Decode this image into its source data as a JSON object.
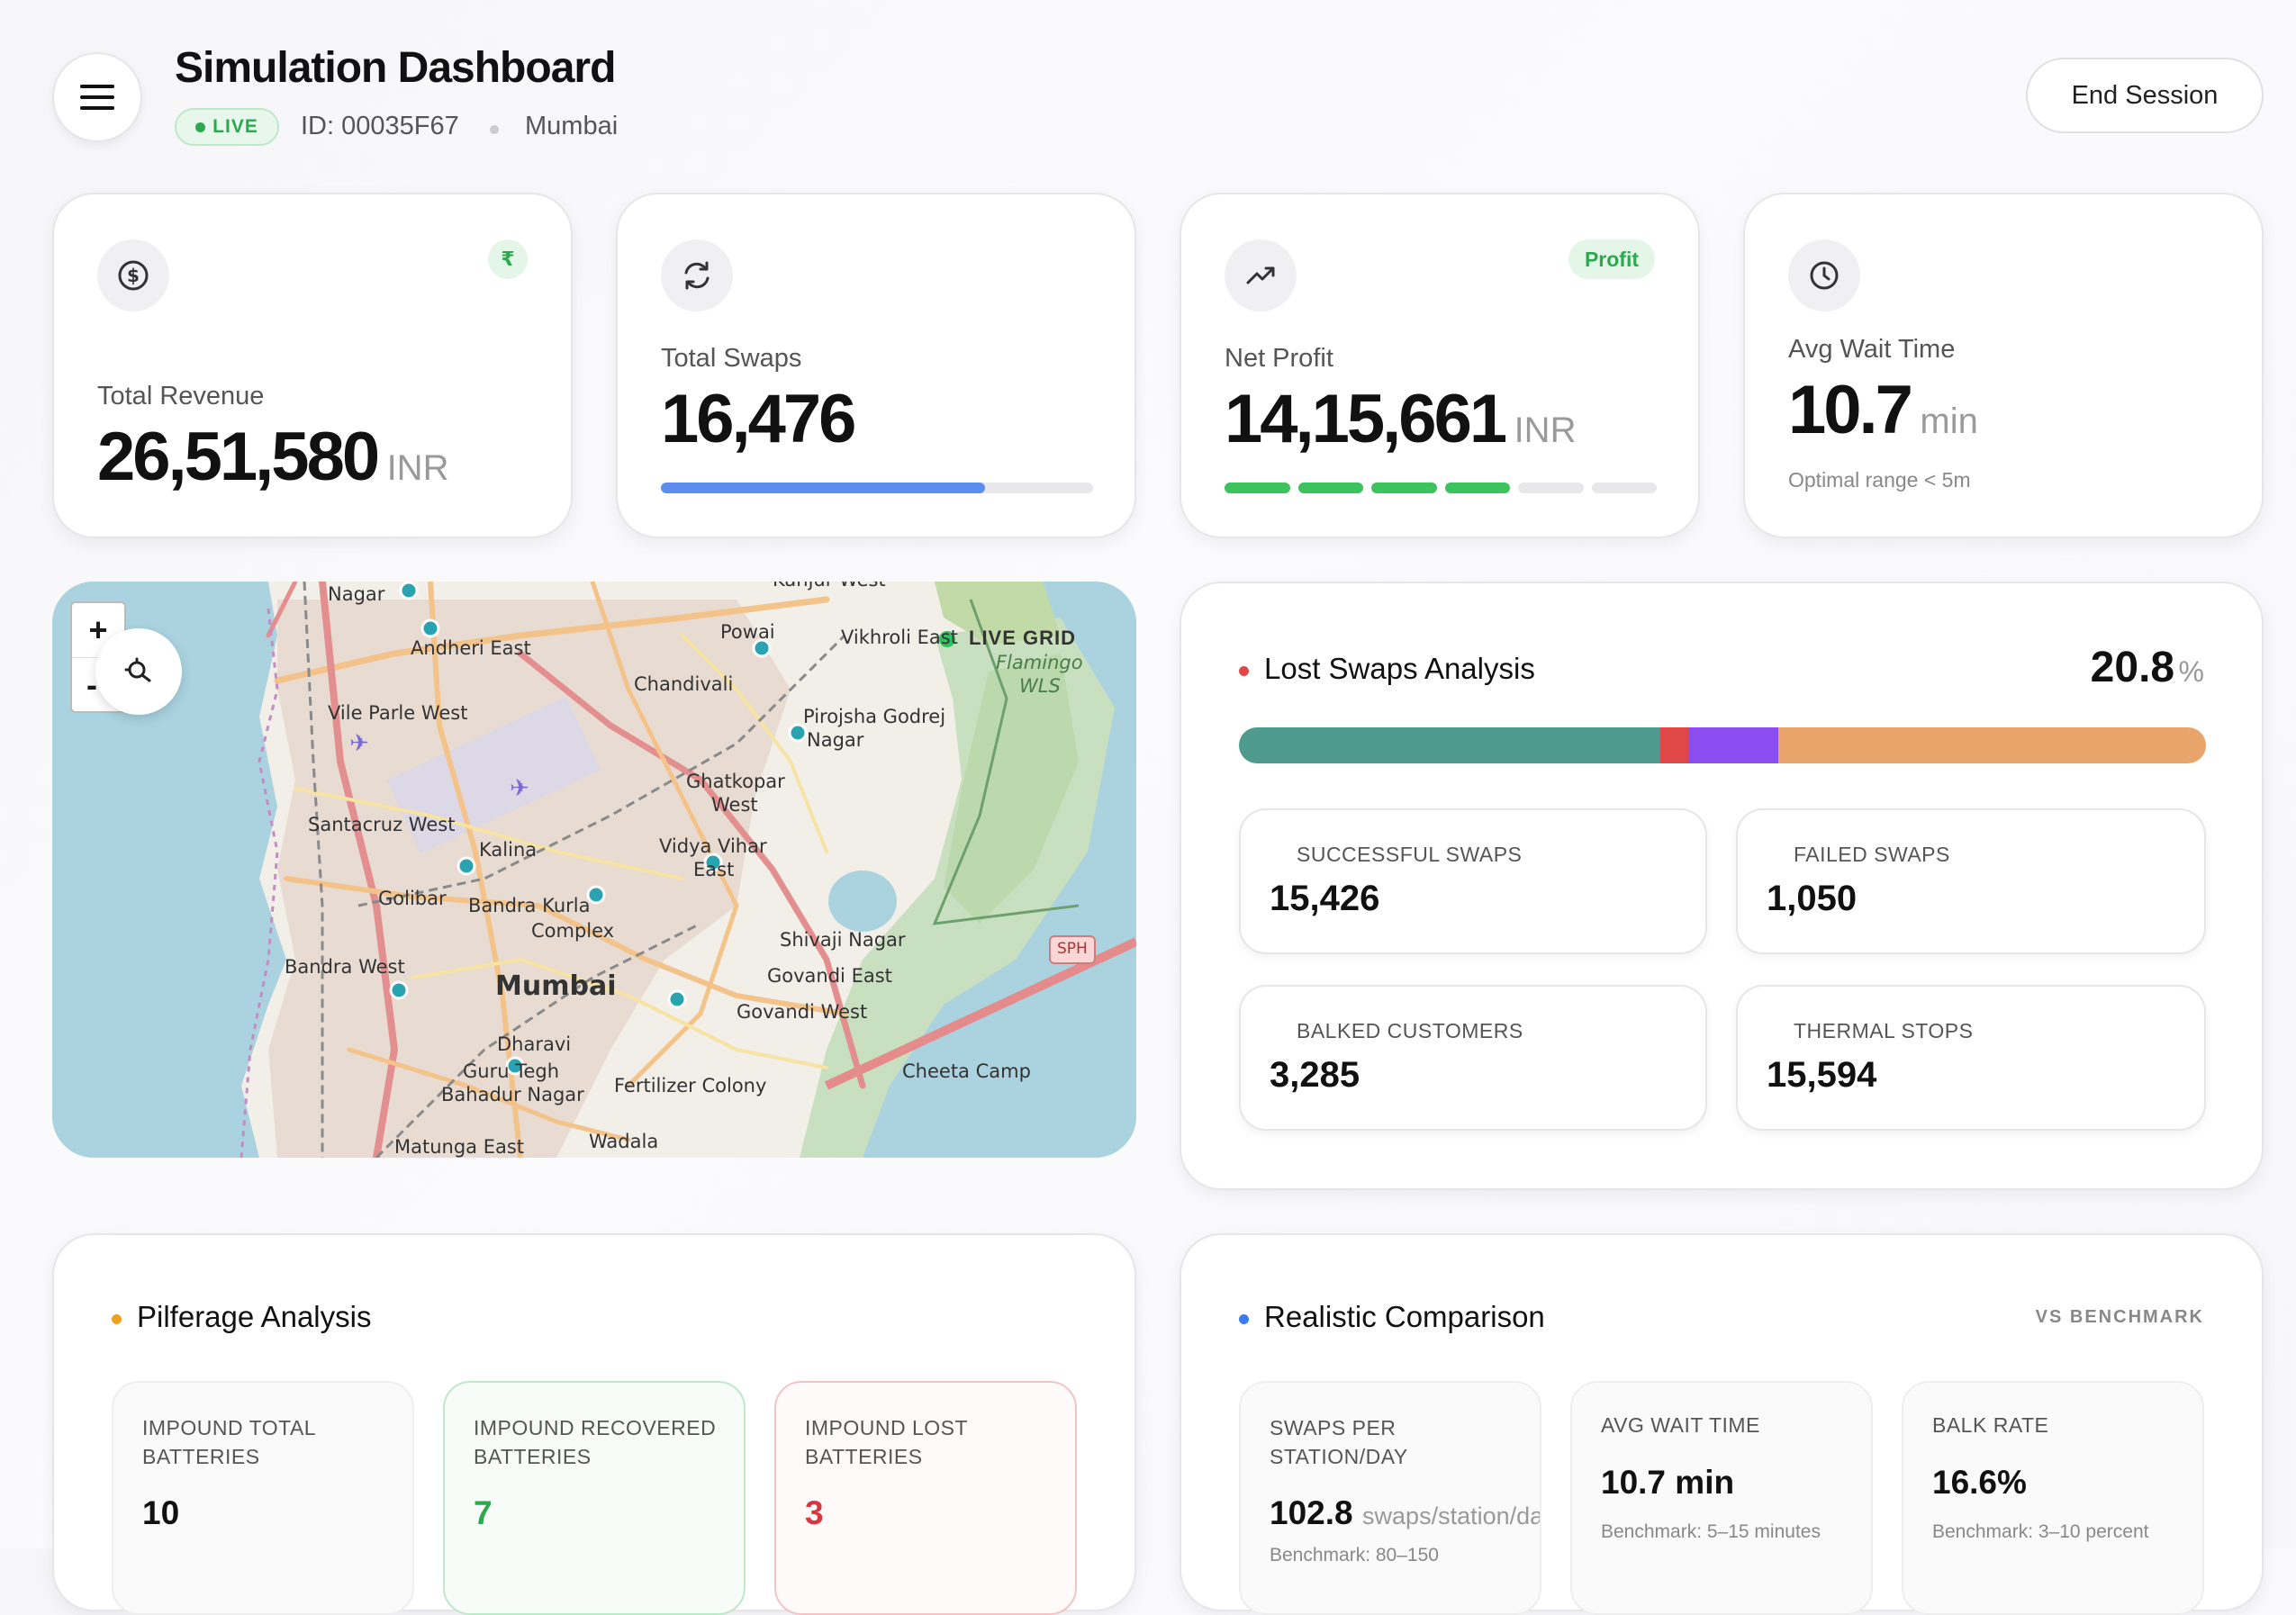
{
  "header": {
    "title": "Simulation Dashboard",
    "live_label": "LIVE",
    "session_id": "ID: 00035F67",
    "location": "Mumbai",
    "end_session_label": "End Session"
  },
  "kpis": {
    "revenue": {
      "label": "Total Revenue",
      "value": "26,51,580",
      "unit": "INR",
      "badge": "₹"
    },
    "swaps": {
      "label": "Total Swaps",
      "value": "16,476",
      "progress": 0.75
    },
    "profit": {
      "label": "Net Profit",
      "value": "14,15,661",
      "unit": "INR",
      "badge": "Profit",
      "segments_filled": 4,
      "segments_total": 6
    },
    "wait": {
      "label": "Avg Wait Time",
      "value": "10.7",
      "unit": "min",
      "note": "Optimal range < 5m"
    }
  },
  "map": {
    "zoom_in": "+",
    "zoom_out": "-",
    "live_grid_label": "LIVE GRID",
    "place_labels": [
      "Nagar",
      "Andheri East",
      "Powai",
      "Vikhroli East",
      "Flamingo",
      "WLS",
      "Chandivali",
      "Vile Parle West",
      "Pirojsha Godrej",
      "Nagar",
      "Ghatkopar",
      "West",
      "Santacruz West",
      "Kalina",
      "Vidya Vihar",
      "East",
      "Golibar",
      "Bandra Kurla",
      "Complex",
      "Shivaji Nagar",
      "Govandi East",
      "Bandra West",
      "Mumbai",
      "Govandi West",
      "Dharavi",
      "Guru Tegh",
      "Bahadur Nagar",
      "Fertilizer Colony",
      "Cheeta Camp",
      "Matunga East",
      "Wadala",
      "SPH",
      "Kanjur West"
    ]
  },
  "lost_swaps": {
    "title": "Lost Swaps Analysis",
    "percent": "20.8",
    "percent_unit": "%",
    "bar_segments": [
      {
        "name": "successful",
        "fraction": 0.436,
        "color": "#4e9a8c"
      },
      {
        "name": "failed",
        "fraction": 0.03,
        "color": "#e04848"
      },
      {
        "name": "balked",
        "fraction": 0.092,
        "color": "#8b4df0"
      },
      {
        "name": "thermal",
        "fraction": 0.442,
        "color": "#e8a46a"
      }
    ],
    "stats": [
      {
        "label": "SUCCESSFUL SWAPS",
        "value": "15,426"
      },
      {
        "label": "FAILED SWAPS",
        "value": "1,050"
      },
      {
        "label": "BALKED CUSTOMERS",
        "value": "3,285"
      },
      {
        "label": "THERMAL STOPS",
        "value": "15,594"
      }
    ]
  },
  "pilferage": {
    "title": "Pilferage Analysis",
    "stats": [
      {
        "label": "IMPOUND TOTAL BATTERIES",
        "value": "10"
      },
      {
        "label": "IMPOUND RECOVERED BATTERIES",
        "value": "7"
      },
      {
        "label": "IMPOUND LOST BATTERIES",
        "value": "3"
      }
    ]
  },
  "comparison": {
    "title": "Realistic Comparison",
    "tag": "VS BENCHMARK",
    "stats": [
      {
        "label": "SWAPS PER STATION/DAY",
        "value": "102.8",
        "unit": "swaps/station/day",
        "benchmark": "Benchmark: 80–150"
      },
      {
        "label": "AVG WAIT TIME",
        "value": "10.7 min",
        "unit": "",
        "benchmark": "Benchmark: 5–15 minutes"
      },
      {
        "label": "BALK RATE",
        "value": "16.6%",
        "unit": "",
        "benchmark": "Benchmark: 3–10 percent"
      }
    ]
  },
  "colors": {
    "live_green": "#2ea84f",
    "progress_blue": "#5b8def",
    "profit_green": "#3cc35d",
    "lost_red": "#e04848",
    "pilferage_orange": "#f0a020",
    "comparison_blue": "#3b7bf0",
    "recovered_green": "#2ea84f",
    "lost_red_text": "#d9363e"
  }
}
